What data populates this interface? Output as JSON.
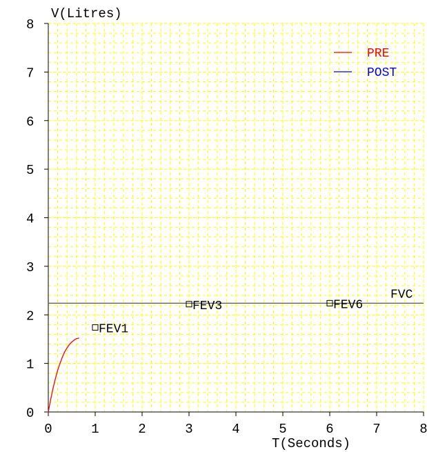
{
  "chart_data": {
    "type": "line",
    "ylabel": "V(Litres)",
    "xlabel": "T(Seconds)",
    "xlim": [
      0,
      8
    ],
    "ylim": [
      0,
      8
    ],
    "x_ticks": [
      "0",
      "1",
      "2",
      "3",
      "4",
      "5",
      "6",
      "7",
      "8"
    ],
    "y_ticks": [
      "0",
      "1",
      "2",
      "3",
      "4",
      "5",
      "6",
      "7",
      "8"
    ],
    "grid": true,
    "legend": {
      "placement": "top-right",
      "entries": [
        {
          "label": "PRE",
          "color": "#ff0000"
        },
        {
          "label": "POST",
          "color": "#0000ff"
        }
      ]
    },
    "series": [
      {
        "name": "PRE",
        "color": "#ff0000",
        "x": [
          0,
          0.03,
          0.06,
          0.1,
          0.15,
          0.2,
          0.25,
          0.3,
          0.35,
          0.4,
          0.45,
          0.5,
          0.55,
          0.6,
          0.65
        ],
        "y": [
          0,
          0.15,
          0.3,
          0.48,
          0.68,
          0.86,
          1.0,
          1.13,
          1.24,
          1.32,
          1.39,
          1.44,
          1.48,
          1.51,
          1.52
        ]
      }
    ],
    "reference_line": {
      "label": "FVC",
      "y": 2.24,
      "color": "#555555"
    },
    "markers": [
      {
        "label": "FEV1",
        "x": 1.0,
        "y": 1.74
      },
      {
        "label": "FEV3",
        "x": 3.0,
        "y": 2.22
      },
      {
        "label": "FEV6",
        "x": 6.0,
        "y": 2.24
      }
    ],
    "colors": {
      "grid": "#ffff00",
      "axis": "#000000",
      "text": "#000000"
    }
  }
}
